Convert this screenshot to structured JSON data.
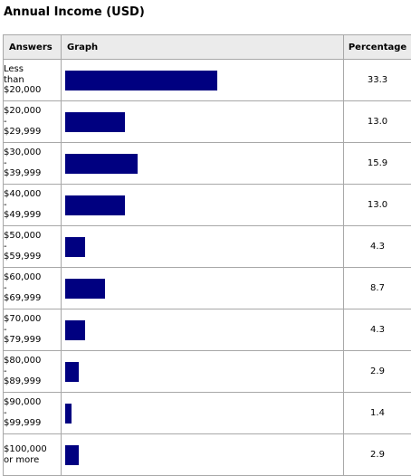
{
  "chart_data": {
    "type": "bar",
    "title": "Annual Income (USD)",
    "headers": [
      "Answers",
      "Graph",
      "Percentage"
    ],
    "categories": [
      [
        "Less",
        "than",
        "$20,000"
      ],
      [
        "$20,000",
        "-",
        "$29,999"
      ],
      [
        "$30,000",
        "-",
        "$39,999"
      ],
      [
        "$40,000",
        "-",
        "$49,999"
      ],
      [
        "$50,000",
        "-",
        "$59,999"
      ],
      [
        "$60,000",
        "-",
        "$69,999"
      ],
      [
        "$70,000",
        "-",
        "$79,999"
      ],
      [
        "$80,000",
        "-",
        "$89,999"
      ],
      [
        "$90,000",
        "-",
        "$99,999"
      ],
      [
        "$100,000",
        "or more"
      ]
    ],
    "values": [
      33.3,
      13.0,
      15.9,
      13.0,
      4.3,
      8.7,
      4.3,
      2.9,
      1.4,
      2.9
    ],
    "value_labels": [
      "33.3",
      "13.0",
      "15.9",
      "13.0",
      "4.3",
      "8.7",
      "4.3",
      "2.9",
      "1.4",
      "2.9"
    ],
    "bar_color": "#000080",
    "orientation": "horizontal"
  }
}
